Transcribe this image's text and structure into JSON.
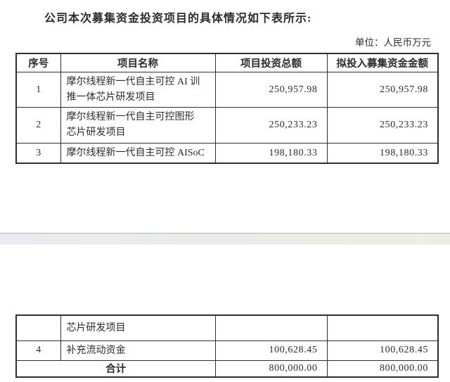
{
  "page": {
    "title": "公司本次募集资金投资项目的具体情况如下表所示:",
    "unit_label": "单位：人民币万元"
  },
  "table": {
    "headers": {
      "no": "序号",
      "name": "项目名称",
      "total": "项目投资总额",
      "raised": "拟投入募集资金金额"
    },
    "rows": [
      {
        "no": "1",
        "name": "摩尔线程新一代自主可控 AI 训\n推一体芯片研发项目",
        "total": "250,957.98",
        "raised": "250,957.98"
      },
      {
        "no": "2",
        "name": "摩尔线程新一代自主可控图形\n芯片研发项目",
        "total": "250,233.23",
        "raised": "250,233.23"
      },
      {
        "no": "3",
        "name": "摩尔线程新一代自主可控 AISoC",
        "total": "198,180.33",
        "raised": "198,180.33"
      }
    ]
  },
  "table_continued": {
    "carryover_row": {
      "no": "",
      "name": "芯片研发项目",
      "total": "",
      "raised": ""
    },
    "rows": [
      {
        "no": "4",
        "name": "补充流动资金",
        "total": "100,628.45",
        "raised": "100,628.45"
      }
    ],
    "total_row": {
      "label": "合计",
      "total": "800,000.00",
      "raised": "800,000.00"
    }
  },
  "colors": {
    "border": "#2e2e2e",
    "text": "#2b2b2b",
    "seam_left": "#e8ecf1",
    "seam_right": "#eeeee0",
    "background": "#ffffff"
  }
}
